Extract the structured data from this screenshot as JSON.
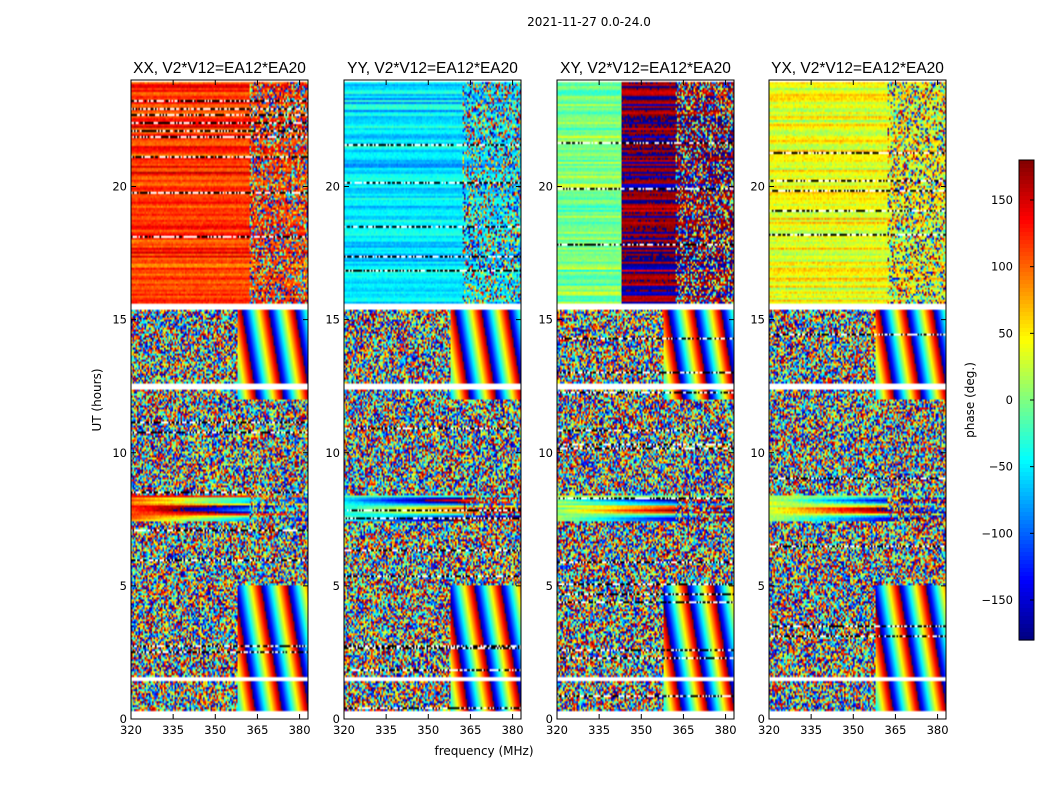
{
  "chart_data": {
    "type": "heatmap",
    "suptitle": "2021-11-27 0.0-24.0",
    "xlabel": "frequency (MHz)",
    "ylabel": "UT (hours)",
    "xlim": [
      320,
      383
    ],
    "ylim": [
      0,
      24
    ],
    "xticks": [
      "320",
      "335",
      "350",
      "365",
      "380"
    ],
    "yticks": [
      "0",
      "5",
      "10",
      "15",
      "20"
    ],
    "colormap": "jet",
    "colorbar": {
      "label": "phase (deg.)",
      "range": [
        -180,
        180
      ],
      "ticks": [
        "150",
        "100",
        "50",
        "0",
        "−50",
        "−100",
        "−150"
      ],
      "tick_values": [
        150,
        100,
        50,
        0,
        -50,
        -100,
        -150
      ]
    },
    "panels": [
      {
        "title": "XX, V2*V12=EA12*EA20",
        "coherent_phase_deg": 115,
        "coherent_spread_deg": 25,
        "early_coherent_phase_deg": 105
      },
      {
        "title": "YY, V2*V12=EA12*EA20",
        "coherent_phase_deg": -55,
        "coherent_spread_deg": 20,
        "early_coherent_phase_deg": -45
      },
      {
        "title": "XY, V2*V12=EA12*EA20",
        "coherent_phase_deg": 180,
        "coherent_spread_deg": 20,
        "early_coherent_phase_deg": 0
      },
      {
        "title": "YX, V2*V12=EA12*EA20",
        "coherent_phase_deg": 40,
        "coherent_spread_deg": 35,
        "early_coherent_phase_deg": 30
      }
    ],
    "segments": {
      "noisy_hours": [
        [
          0.3,
          7.4
        ],
        [
          8.6,
          15.4
        ]
      ],
      "coherent_hours": [
        [
          7.4,
          8.4
        ],
        [
          15.6,
          23.9
        ]
      ],
      "gap_hours": [
        [
          1.4,
          1.6
        ],
        [
          12.4,
          12.6
        ],
        [
          15.35,
          15.6
        ]
      ]
    }
  }
}
